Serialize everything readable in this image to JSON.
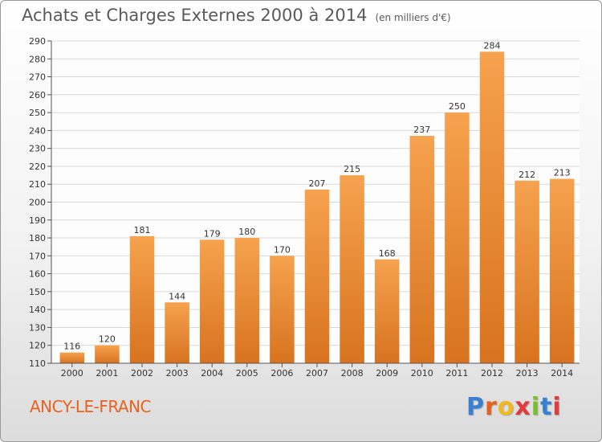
{
  "header": {
    "title": "Achats et Charges Externes 2000 à 2014",
    "unit": "(en milliers d'€)"
  },
  "footer": {
    "commune": "ANCY-LE-FRANC",
    "logo_text": "Proxiti",
    "logo_colors": [
      "#3a7fd0",
      "#e8621f",
      "#f2b81c",
      "#e23b3b",
      "#7cbf2e",
      "#3a7fd0",
      "#e23b3b"
    ]
  },
  "colors": {
    "bar_light": "#f6a24e",
    "bar_dark": "#d8731f",
    "grid": "#d8d8d8",
    "plot_bg": "#fdfdfd"
  },
  "chart_data": {
    "type": "bar",
    "categories": [
      "2000",
      "2001",
      "2002",
      "2003",
      "2004",
      "2005",
      "2006",
      "2007",
      "2008",
      "2009",
      "2010",
      "2011",
      "2012",
      "2013",
      "2014"
    ],
    "values": [
      116,
      120,
      181,
      144,
      179,
      180,
      170,
      207,
      215,
      168,
      237,
      250,
      284,
      212,
      213
    ],
    "ylim": [
      110,
      290
    ],
    "yticks": [
      110,
      120,
      130,
      140,
      150,
      160,
      170,
      180,
      190,
      200,
      210,
      220,
      230,
      240,
      250,
      260,
      270,
      280,
      290
    ],
    "grid": true,
    "data_labels": true
  }
}
